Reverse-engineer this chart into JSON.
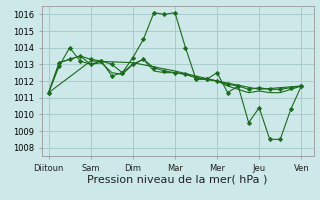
{
  "background_color": "#cce8e8",
  "grid_color": "#aacccc",
  "line_color": "#1a6b1a",
  "marker_color": "#1a6b1a",
  "xlabel": "Pression niveau de la mer( hPa )",
  "xlabel_fontsize": 8,
  "tick_labels": [
    "Diitoun",
    "Sam",
    "Dim",
    "Mar",
    "Mer",
    "Jeu",
    "Ven"
  ],
  "tick_positions": [
    0,
    48,
    96,
    144,
    192,
    240,
    288
  ],
  "xlim": [
    -8,
    302
  ],
  "ylim": [
    1007.5,
    1016.5
  ],
  "yticks": [
    1008,
    1009,
    1010,
    1011,
    1012,
    1013,
    1014,
    1015,
    1016
  ],
  "series": [
    {
      "x": [
        0,
        12,
        24,
        36,
        48,
        60,
        72,
        84,
        96,
        108,
        120,
        132,
        144,
        156,
        168,
        180,
        192,
        204,
        216,
        228,
        240,
        252,
        264,
        276,
        288
      ],
      "y": [
        1011.3,
        1012.9,
        1014.0,
        1013.2,
        1013.0,
        1013.2,
        1012.3,
        1012.5,
        1013.4,
        1014.5,
        1016.1,
        1016.0,
        1016.1,
        1014.0,
        1012.1,
        1012.1,
        1012.5,
        1011.3,
        1011.7,
        1009.5,
        1010.4,
        1008.5,
        1008.5,
        1010.3,
        1011.7
      ],
      "marker": "D"
    },
    {
      "x": [
        0,
        12,
        24,
        36,
        48,
        60,
        72,
        84,
        96,
        108,
        120,
        132,
        144,
        156,
        168,
        180,
        192,
        204,
        216,
        228,
        240,
        252,
        264,
        276,
        288
      ],
      "y": [
        1011.3,
        1013.1,
        1013.3,
        1013.5,
        1013.3,
        1013.2,
        1013.0,
        1012.5,
        1013.0,
        1013.3,
        1012.8,
        1012.6,
        1012.5,
        1012.4,
        1012.2,
        1012.1,
        1012.0,
        1011.8,
        1011.7,
        1011.5,
        1011.6,
        1011.5,
        1011.5,
        1011.6,
        1011.7
      ],
      "marker": "D"
    },
    {
      "x": [
        0,
        12,
        24,
        36,
        48,
        60,
        72,
        84,
        96,
        108,
        120,
        132,
        144,
        156,
        168,
        180,
        192,
        204,
        216,
        228,
        240,
        252,
        264,
        276,
        288
      ],
      "y": [
        1011.3,
        1013.1,
        1013.3,
        1013.5,
        1013.0,
        1013.1,
        1012.5,
        1012.4,
        1013.0,
        1013.3,
        1012.6,
        1012.5,
        1012.5,
        1012.4,
        1012.2,
        1012.1,
        1012.0,
        1011.7,
        1011.5,
        1011.3,
        1011.4,
        1011.3,
        1011.3,
        1011.5,
        1011.7
      ],
      "marker": null
    },
    {
      "x": [
        0,
        48,
        96,
        144,
        192,
        240,
        288
      ],
      "y": [
        1011.3,
        1013.2,
        1013.1,
        1012.6,
        1012.0,
        1011.5,
        1011.7
      ],
      "marker": null
    }
  ]
}
